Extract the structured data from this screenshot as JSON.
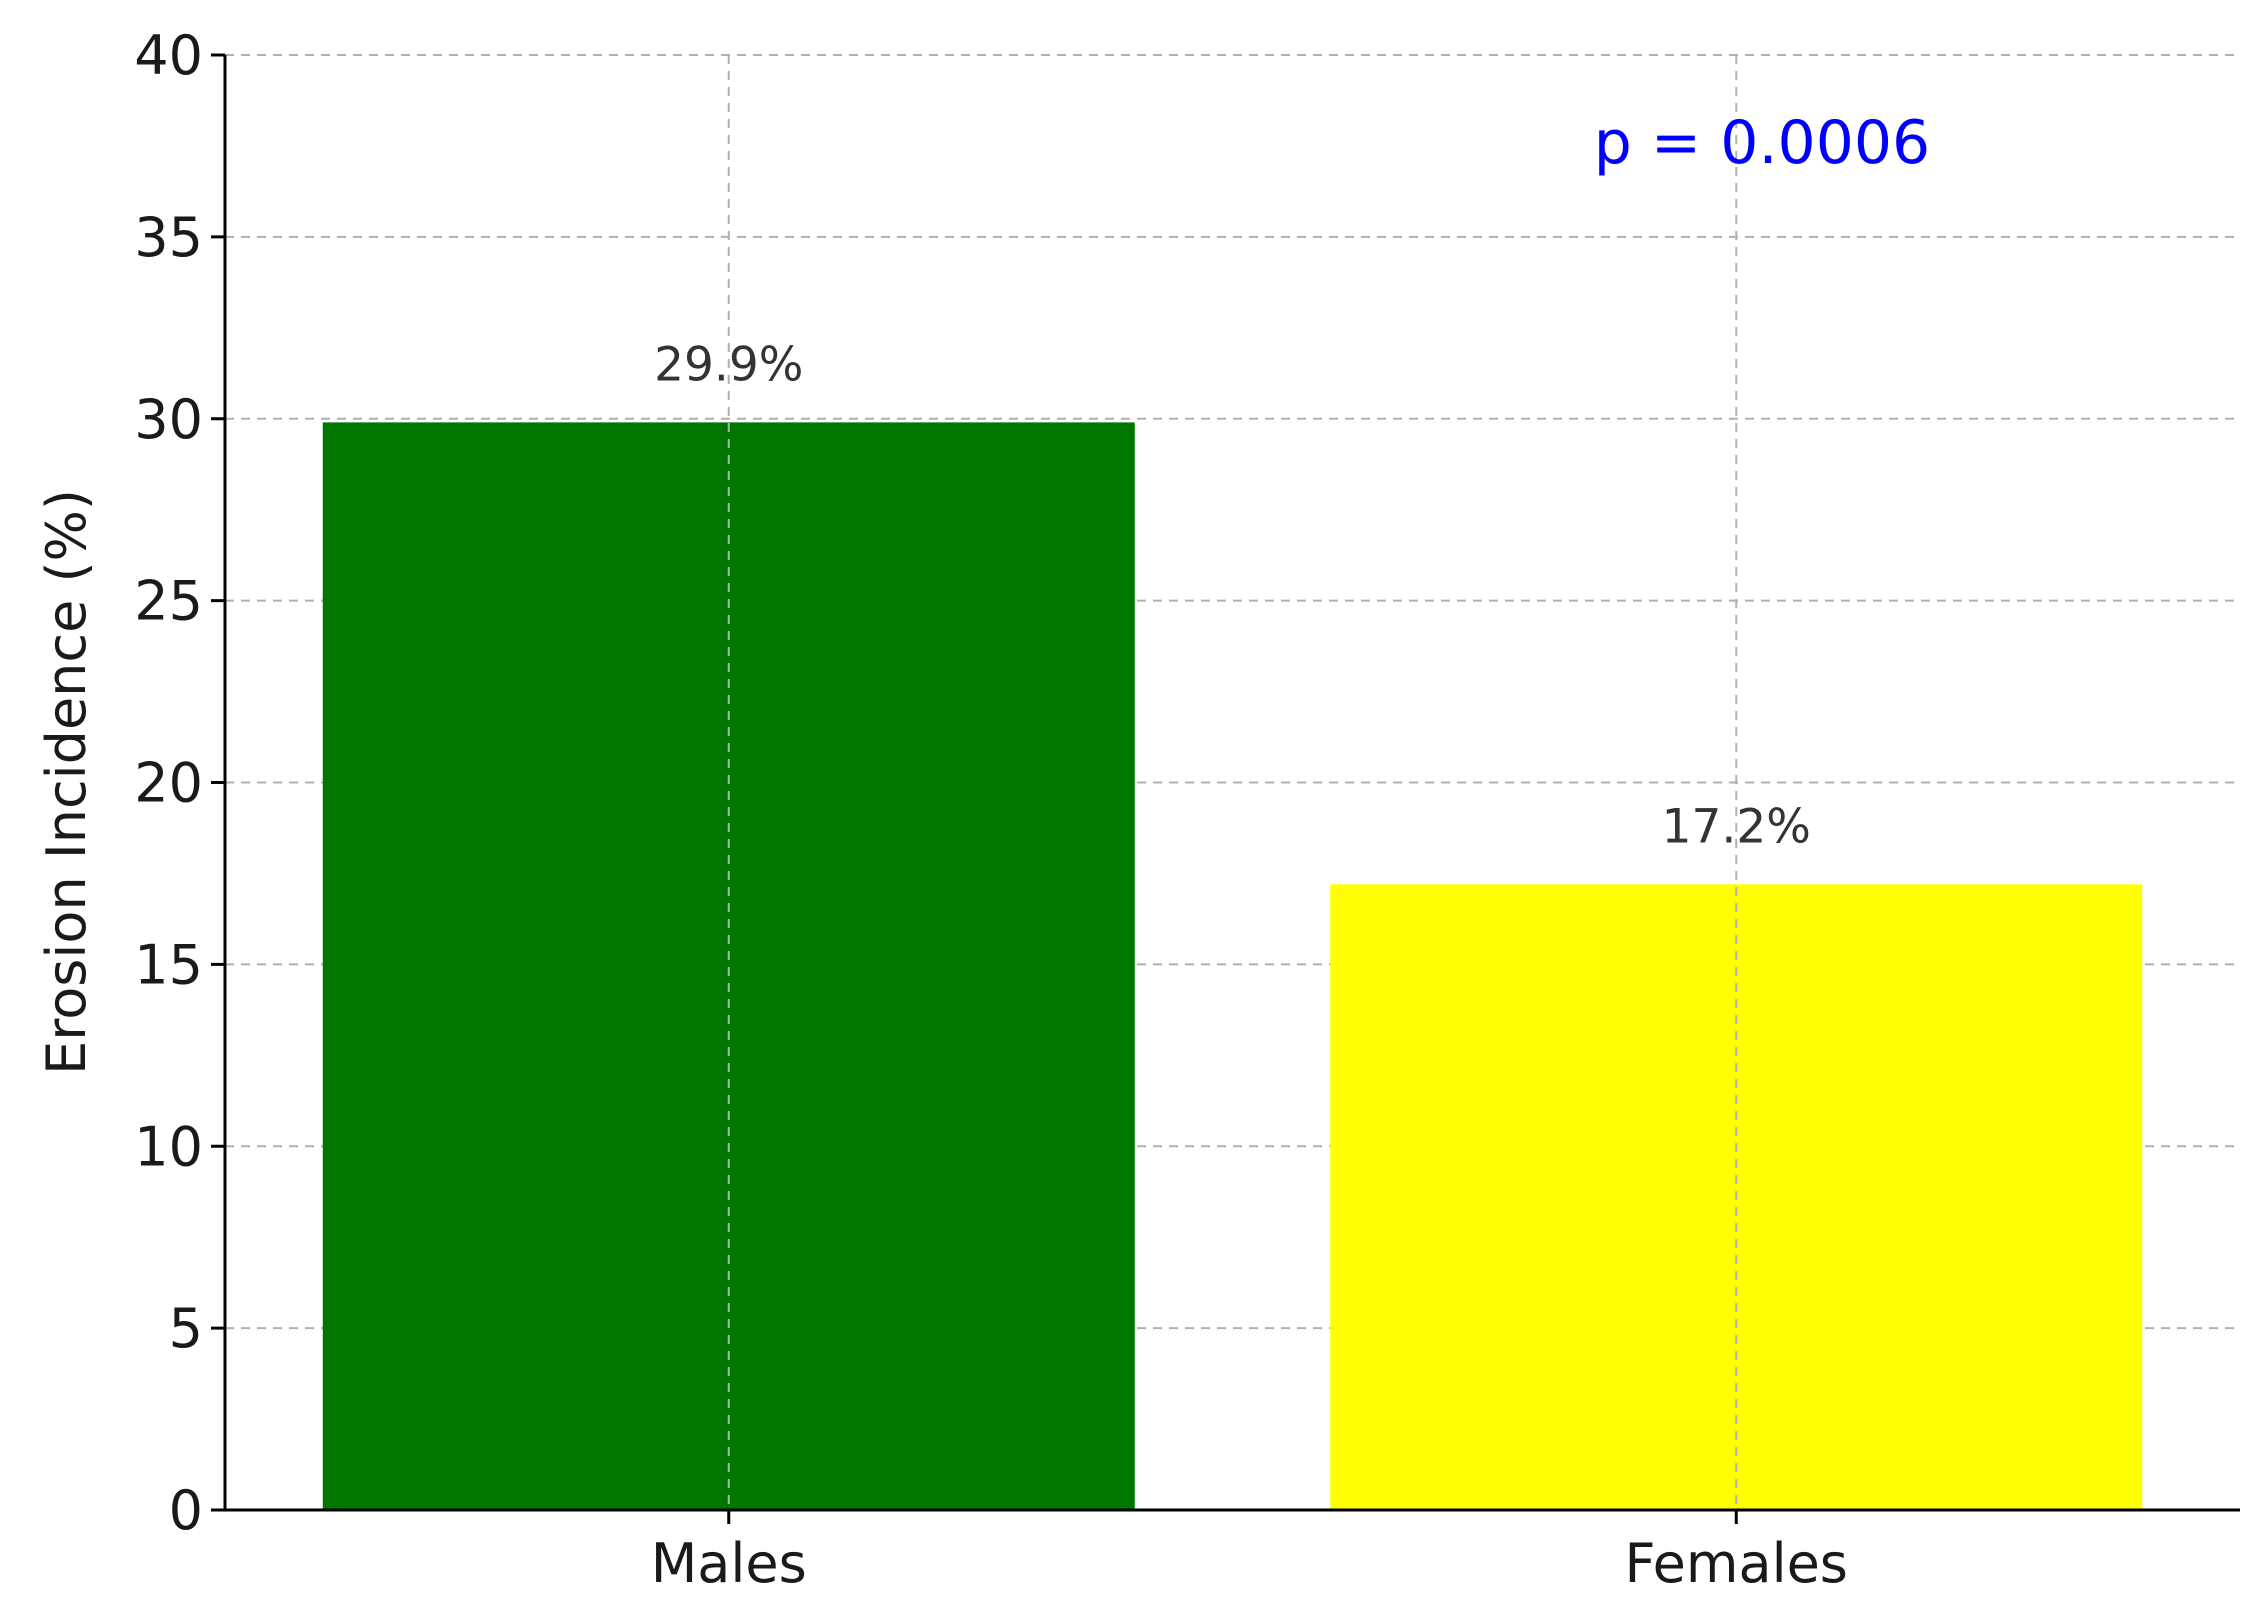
{
  "chart_data": {
    "type": "bar",
    "categories": [
      "Males",
      "Females"
    ],
    "values": [
      29.9,
      17.2
    ],
    "value_labels": [
      "29.9%",
      "17.2%"
    ],
    "colors": [
      "#007800",
      "#ffff00"
    ],
    "title": "",
    "xlabel": "",
    "ylabel": "Erosion Incidence (%)",
    "ylim": [
      0,
      40
    ],
    "yticks": [
      0,
      5,
      10,
      15,
      20,
      25,
      30,
      35,
      40
    ],
    "grid": true,
    "annotation": {
      "text": "p = 0.0006",
      "color": "#0000ff",
      "placement": "top-right"
    }
  }
}
